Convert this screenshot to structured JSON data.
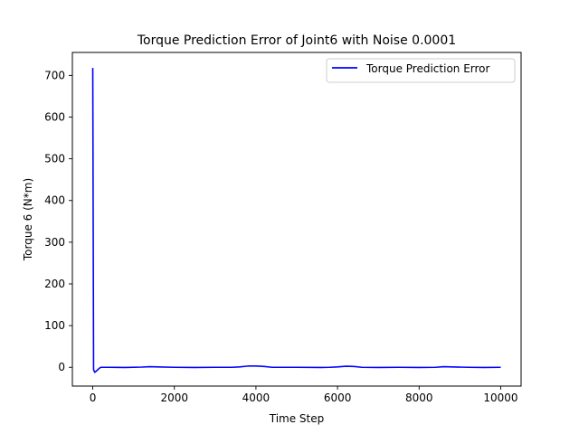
{
  "chart_data": {
    "type": "line",
    "title": "Torque Prediction Error of Joint6 with Noise 0.0001",
    "xlabel": "Time Step",
    "ylabel": "Torque 6 (N*m)",
    "xlim": [
      -500,
      10500
    ],
    "ylim": [
      -45,
      755
    ],
    "xticks": [
      0,
      2000,
      4000,
      6000,
      8000,
      10000
    ],
    "xtick_labels": [
      "0",
      "2000",
      "4000",
      "6000",
      "8000",
      "10000"
    ],
    "yticks": [
      0,
      100,
      200,
      300,
      400,
      500,
      600,
      700
    ],
    "ytick_labels": [
      "0",
      "100",
      "200",
      "300",
      "400",
      "500",
      "600",
      "700"
    ],
    "grid": false,
    "legend_position": "upper right",
    "series": [
      {
        "name": "Torque Prediction Error",
        "color": "#0000ff",
        "x": [
          0,
          10,
          20,
          50,
          100,
          150,
          200,
          400,
          800,
          1200,
          1400,
          1600,
          2000,
          2500,
          3000,
          3400,
          3600,
          3800,
          4000,
          4200,
          4400,
          5000,
          5600,
          5800,
          6000,
          6200,
          6400,
          6600,
          7000,
          7500,
          8000,
          8400,
          8600,
          8800,
          9200,
          9600,
          10000
        ],
        "y": [
          718,
          350,
          -6,
          -12,
          -8,
          -3,
          0,
          0,
          -0.5,
          0.5,
          1.5,
          1,
          0,
          -0.5,
          0,
          0,
          1,
          3,
          3,
          2,
          0,
          0,
          -0.5,
          0,
          1,
          2.5,
          2,
          0,
          -0.5,
          0,
          -0.5,
          0,
          1.5,
          1,
          0,
          -0.5,
          0
        ]
      }
    ]
  }
}
